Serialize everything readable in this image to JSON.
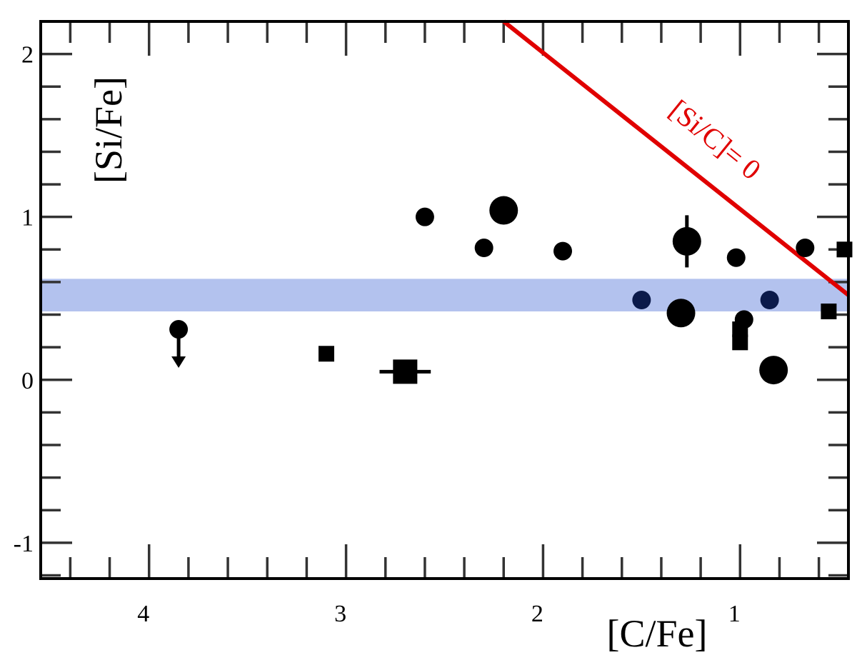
{
  "chart_data": {
    "type": "scatter",
    "title": "",
    "xlabel": "[C/Fe]",
    "ylabel": "[Si/Fe]",
    "xlim": [
      4.55,
      0.45
    ],
    "ylim": [
      -1.22,
      2.2
    ],
    "x_reversed": true,
    "grid": false,
    "x_ticks": [
      4,
      3,
      2,
      1
    ],
    "x_tick_labels": [
      "4",
      "3",
      "2",
      "1"
    ],
    "y_ticks": [
      2,
      1,
      0,
      -1
    ],
    "y_tick_labels": [
      "2",
      "1",
      "0",
      "-1"
    ],
    "band": {
      "y_from": 0.42,
      "y_to": 0.62,
      "color": "#b3c2ee"
    },
    "line": {
      "label": "[Si/C]= 0",
      "color": "#e00000",
      "points": [
        [
          2.2,
          2.2
        ],
        [
          0.45,
          0.52
        ]
      ]
    },
    "series": [
      {
        "marker": "circle",
        "color": "#000000",
        "points": [
          {
            "x": 2.6,
            "y": 1.0,
            "size": "small"
          },
          {
            "x": 2.2,
            "y": 1.04,
            "size": "large"
          },
          {
            "x": 2.3,
            "y": 0.81,
            "size": "small"
          },
          {
            "x": 1.9,
            "y": 0.79,
            "size": "small"
          },
          {
            "x": 1.27,
            "y": 0.85,
            "size": "large",
            "yerr": 0.16
          },
          {
            "x": 1.02,
            "y": 0.75,
            "size": "small"
          },
          {
            "x": 0.67,
            "y": 0.81,
            "size": "small"
          },
          {
            "x": 1.3,
            "y": 0.41,
            "size": "large"
          },
          {
            "x": 0.98,
            "y": 0.37,
            "size": "small"
          },
          {
            "x": 0.83,
            "y": 0.06,
            "size": "large"
          },
          {
            "x": 3.85,
            "y": 0.31,
            "size": "small",
            "upper_limit": true
          }
        ]
      },
      {
        "marker": "circle",
        "color": "#0b1a4a",
        "points": [
          {
            "x": 1.5,
            "y": 0.49,
            "size": "small"
          },
          {
            "x": 0.85,
            "y": 0.49,
            "size": "small"
          }
        ]
      },
      {
        "marker": "square",
        "color": "#000000",
        "points": [
          {
            "x": 3.1,
            "y": 0.16,
            "size": "small"
          },
          {
            "x": 2.7,
            "y": 0.05,
            "size": "large",
            "xerr": 0.13
          },
          {
            "x": 1.0,
            "y": 0.31,
            "size": "small"
          },
          {
            "x": 1.0,
            "y": 0.23,
            "size": "small"
          },
          {
            "x": 0.55,
            "y": 0.42,
            "size": "small"
          },
          {
            "x": 0.47,
            "y": 0.8,
            "size": "small"
          }
        ]
      }
    ]
  }
}
